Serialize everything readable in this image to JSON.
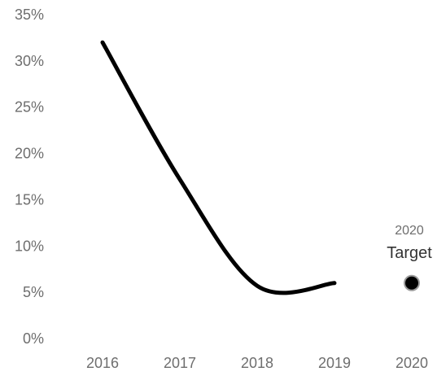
{
  "chart_data": {
    "type": "line",
    "title": "",
    "xlabel": "",
    "ylabel": "",
    "x": [
      "2016",
      "2017",
      "2018",
      "2019"
    ],
    "series": [
      {
        "values": [
          0.32,
          0.172,
          0.057,
          0.06
        ]
      }
    ],
    "target": {
      "x": "2020",
      "value": 0.06,
      "year_label": "2020",
      "label": "Target"
    },
    "x_categories": [
      "2016",
      "2017",
      "2018",
      "2019",
      "2020"
    ],
    "ylim": [
      0,
      0.35
    ],
    "y_ticks": [
      "0%",
      "5%",
      "10%",
      "15%",
      "20%",
      "25%",
      "30%",
      "35%"
    ],
    "grid": false,
    "legend": "none",
    "colors": {
      "line": "#000000",
      "marker_fill": "#000000",
      "marker_stroke": "#9a9a9a",
      "text": "#6e6e6e",
      "annotation": "#333333"
    }
  }
}
